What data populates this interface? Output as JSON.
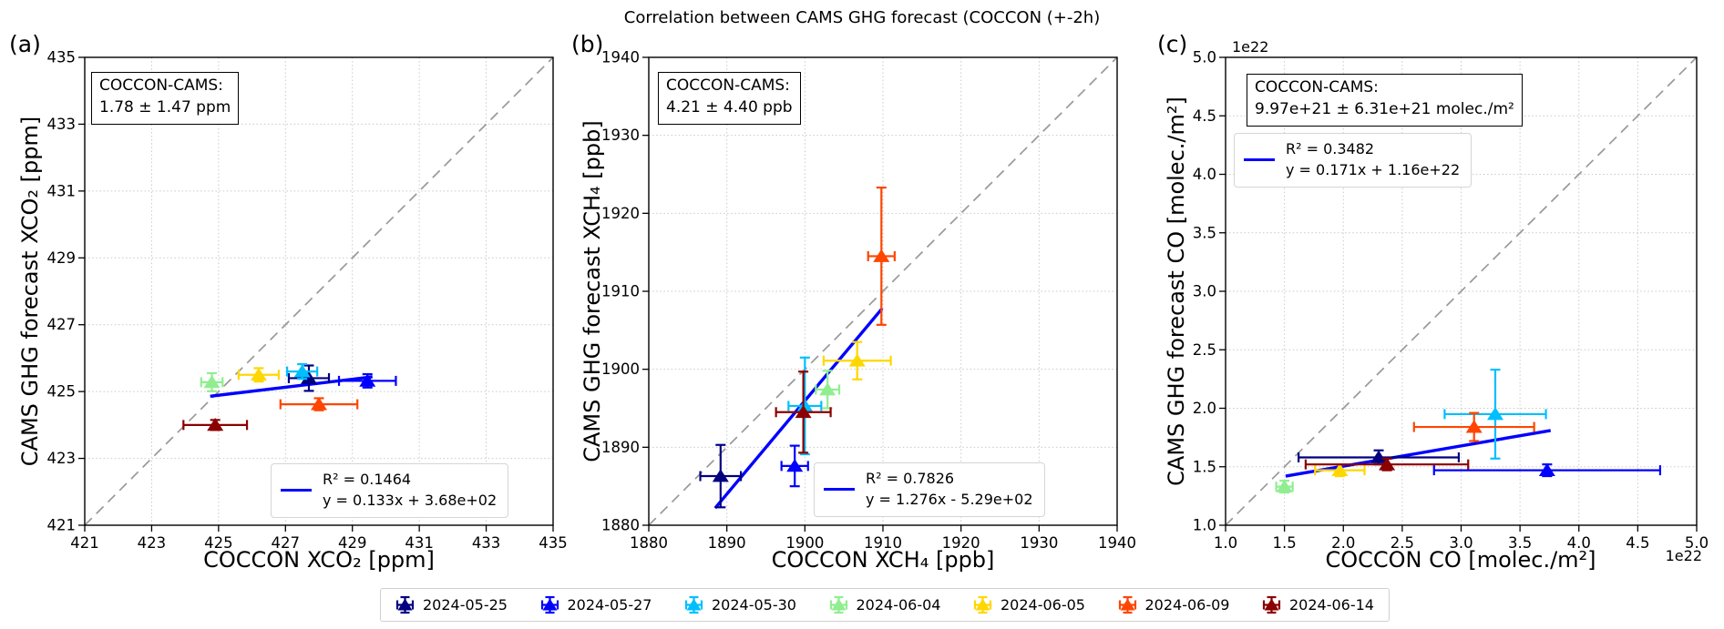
{
  "title": "Correlation between CAMS GHG forecast (COCCON (+-2h)",
  "legend": {
    "entries": [
      {
        "label": "2024-05-25",
        "color": "#000080"
      },
      {
        "label": "2024-05-27",
        "color": "#0000ff"
      },
      {
        "label": "2024-05-30",
        "color": "#00bfff"
      },
      {
        "label": "2024-06-04",
        "color": "#90ee90"
      },
      {
        "label": "2024-06-05",
        "color": "#ffd700"
      },
      {
        "label": "2024-06-09",
        "color": "#ff4500"
      },
      {
        "label": "2024-06-14",
        "color": "#8b0000"
      }
    ]
  },
  "style": {
    "fit_color": "#0000ff",
    "identity_color": "#999999",
    "grid_color": "#c9c9c9"
  },
  "chart_data": [
    {
      "type": "scatter",
      "letter": "(a)",
      "xlabel": "COCCON XCO₂ [ppm]",
      "ylabel": "CAMS GHG forecast XCO₂ [ppm]",
      "xlim": [
        421,
        435
      ],
      "ylim": [
        421,
        435
      ],
      "tick_step": 2,
      "tick_decimals": 0,
      "grid": true,
      "identity_line": true,
      "legend_position": "lower-right",
      "annotation": {
        "line1": "COCCON-CAMS:",
        "line2": "1.78 ± 1.47 ppm"
      },
      "fit_legend": {
        "r2": "R² = 0.1464",
        "equation": "y = 0.133x + 3.68e+02"
      },
      "fit_line": {
        "x1": 424.75,
        "y1": 424.86,
        "x2": 429.6,
        "y2": 425.44
      },
      "points": [
        {
          "date": "2024-05-25",
          "x": 427.7,
          "y": 425.4,
          "xerr": 0.6,
          "yerr": 0.38
        },
        {
          "date": "2024-05-27",
          "x": 429.45,
          "y": 425.32,
          "xerr": 0.85,
          "yerr": 0.2
        },
        {
          "date": "2024-05-30",
          "x": 427.5,
          "y": 425.6,
          "xerr": 0.45,
          "yerr": 0.22
        },
        {
          "date": "2024-06-04",
          "x": 424.8,
          "y": 425.28,
          "xerr": 0.32,
          "yerr": 0.27
        },
        {
          "date": "2024-06-05",
          "x": 426.2,
          "y": 425.5,
          "xerr": 0.6,
          "yerr": 0.2
        },
        {
          "date": "2024-06-09",
          "x": 428.0,
          "y": 424.62,
          "xerr": 1.15,
          "yerr": 0.18
        },
        {
          "date": "2024-06-14",
          "x": 424.9,
          "y": 424.0,
          "xerr": 0.95,
          "yerr": 0.15
        }
      ]
    },
    {
      "type": "scatter",
      "letter": "(b)",
      "xlabel": "COCCON XCH₄ [ppb]",
      "ylabel": "CAMS GHG forecast XCH₄ [ppb]",
      "xlim": [
        1880,
        1940
      ],
      "ylim": [
        1880,
        1940
      ],
      "tick_step": 10,
      "tick_decimals": 0,
      "grid": true,
      "identity_line": true,
      "legend_position": "lower-right",
      "annotation": {
        "line1": "COCCON-CAMS:",
        "line2": "4.21 ± 4.40 ppb"
      },
      "fit_legend": {
        "r2": "R² = 0.7826",
        "equation": "y = 1.276x - 5.29e+02"
      },
      "fit_line": {
        "x1": 1888.5,
        "y1": 1882.2,
        "x2": 1909.9,
        "y2": 1907.8
      },
      "points": [
        {
          "date": "2024-05-25",
          "x": 1889.2,
          "y": 1886.3,
          "xerr": 2.6,
          "yerr": 4.0
        },
        {
          "date": "2024-05-27",
          "x": 1898.7,
          "y": 1887.6,
          "xerr": 1.7,
          "yerr": 2.6
        },
        {
          "date": "2024-05-30",
          "x": 1900.0,
          "y": 1895.3,
          "xerr": 2.1,
          "yerr": 6.2
        },
        {
          "date": "2024-06-04",
          "x": 1902.9,
          "y": 1897.4,
          "xerr": 1.5,
          "yerr": 2.4
        },
        {
          "date": "2024-06-05",
          "x": 1906.7,
          "y": 1901.1,
          "xerr": 4.3,
          "yerr": 2.4
        },
        {
          "date": "2024-06-09",
          "x": 1909.8,
          "y": 1914.5,
          "xerr": 1.7,
          "yerr": 8.8
        },
        {
          "date": "2024-06-14",
          "x": 1899.8,
          "y": 1894.5,
          "xerr": 3.5,
          "yerr": 5.2
        }
      ]
    },
    {
      "type": "scatter",
      "letter": "(c)",
      "xlabel": "COCCON CO [molec./m²]",
      "ylabel": "CAMS GHG forecast CO [molec./m²]",
      "xlim": [
        1.0,
        5.0
      ],
      "ylim": [
        1.0,
        5.0
      ],
      "tick_step": 0.5,
      "tick_decimals": 1,
      "y_offset_text": "1e22",
      "x_offset_text": "1e22",
      "grid": true,
      "identity_line": true,
      "legend_position": "upper-left",
      "annotation": {
        "line1": "COCCON-CAMS:",
        "line2": "9.97e+21 ± 6.31e+21 molec./m²"
      },
      "fit_legend": {
        "r2": "R² = 0.3482",
        "equation": "y = 0.171x + 1.16e+22"
      },
      "fit_line": {
        "x1": 1.51,
        "y1": 1.42,
        "x2": 3.76,
        "y2": 1.81
      },
      "points": [
        {
          "date": "2024-05-25",
          "x": 2.3,
          "y": 1.58,
          "xerr": 0.68,
          "yerr": 0.06
        },
        {
          "date": "2024-05-27",
          "x": 3.73,
          "y": 1.47,
          "xerr": 0.96,
          "yerr": 0.05
        },
        {
          "date": "2024-05-30",
          "x": 3.29,
          "y": 1.95,
          "xerr": 0.43,
          "yerr": 0.38
        },
        {
          "date": "2024-06-04",
          "x": 1.5,
          "y": 1.33,
          "xerr": 0.07,
          "yerr": 0.05
        },
        {
          "date": "2024-06-05",
          "x": 1.97,
          "y": 1.47,
          "xerr": 0.21,
          "yerr": 0.05
        },
        {
          "date": "2024-06-09",
          "x": 3.11,
          "y": 1.84,
          "xerr": 0.51,
          "yerr": 0.12
        },
        {
          "date": "2024-06-14",
          "x": 2.37,
          "y": 1.52,
          "xerr": 0.69,
          "yerr": 0.05
        }
      ]
    }
  ]
}
